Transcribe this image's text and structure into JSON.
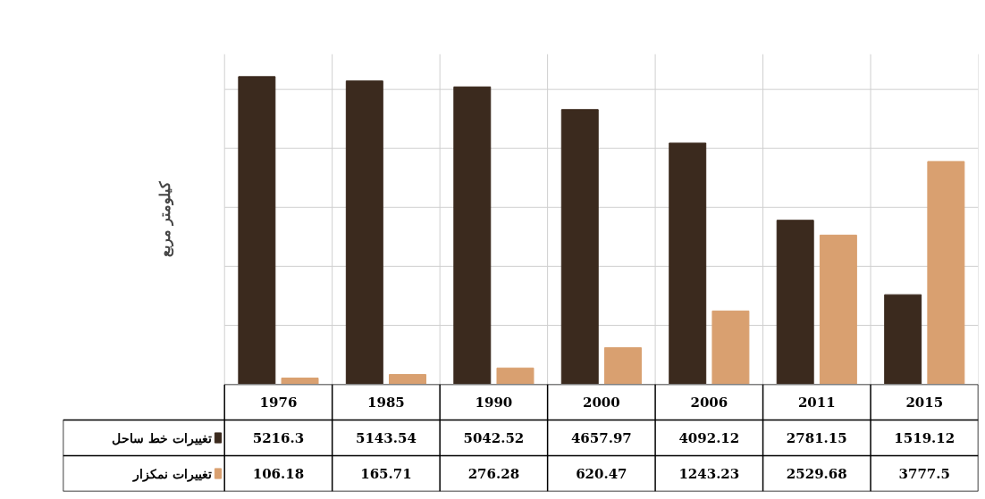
{
  "chart_data": {
    "type": "bar",
    "ylabel": "کیلومتر مربع",
    "categories": [
      "1976",
      "1985",
      "1990",
      "2000",
      "2006",
      "2011",
      "2015"
    ],
    "series": [
      {
        "name": "تغییرات خط ساحل",
        "color": "#3b2a1e",
        "values": [
          5216.3,
          5143.54,
          5042.52,
          4657.97,
          4092.12,
          2781.15,
          1519.12
        ]
      },
      {
        "name": "تغییرات نمکزار",
        "color": "#d9a070",
        "values": [
          106.18,
          165.71,
          276.28,
          620.47,
          1243.23,
          2529.68,
          3777.5
        ]
      }
    ],
    "ylim": [
      0,
      5600
    ],
    "yticks": [
      {
        "value": 1000,
        "label": null
      },
      {
        "value": 2000,
        "label": null
      },
      {
        "value": 3000,
        "label": null
      },
      {
        "value": 4000,
        "label": null
      },
      {
        "value": 5000,
        "label": null
      }
    ],
    "grid": true,
    "tick_labels": false,
    "legend": "bottom",
    "data_labels": true
  }
}
